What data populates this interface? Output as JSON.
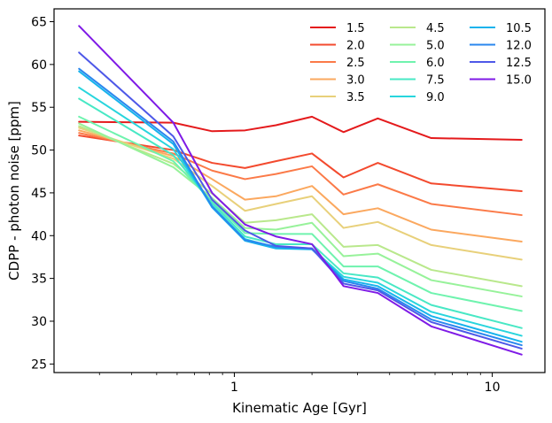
{
  "chart_data": {
    "type": "line",
    "title": "",
    "xlabel": "Kinematic Age [Gyr]",
    "ylabel": "CDPP - photon noise [ppm]",
    "xscale": "log",
    "xlim": [
      0.2,
      16.0
    ],
    "ylim": [
      24,
      66.5
    ],
    "yticks": [
      25,
      30,
      35,
      40,
      45,
      50,
      55,
      60,
      65
    ],
    "xticks": [
      1,
      10
    ],
    "xtick_labels": [
      "1",
      "10"
    ],
    "x": [
      0.25,
      0.58,
      0.82,
      1.1,
      1.45,
      2.0,
      2.65,
      3.6,
      5.8,
      13.0
    ],
    "legend_position": "top-right",
    "legend_columns": 3,
    "series": [
      {
        "name": "1.5",
        "color": "#e41a1c",
        "values": [
          53.3,
          53.2,
          52.2,
          52.3,
          52.9,
          53.9,
          52.1,
          53.7,
          51.4,
          51.2
        ]
      },
      {
        "name": "2.0",
        "color": "#f34a2e",
        "values": [
          51.7,
          50.0,
          48.5,
          47.9,
          48.7,
          49.6,
          46.8,
          48.5,
          46.1,
          45.2
        ]
      },
      {
        "name": "2.5",
        "color": "#fb7a48",
        "values": [
          52.0,
          49.6,
          47.6,
          46.6,
          47.2,
          48.1,
          44.8,
          46.0,
          43.7,
          42.4
        ]
      },
      {
        "name": "3.0",
        "color": "#fba85f",
        "values": [
          52.3,
          49.3,
          46.6,
          44.2,
          44.6,
          45.8,
          42.5,
          43.2,
          40.7,
          39.3
        ]
      },
      {
        "name": "3.5",
        "color": "#e8d07a",
        "values": [
          52.6,
          49.0,
          45.8,
          42.9,
          43.7,
          44.6,
          40.9,
          41.6,
          38.9,
          37.2
        ]
      },
      {
        "name": "4.5",
        "color": "#b9e88c",
        "values": [
          52.8,
          48.4,
          44.9,
          41.5,
          41.8,
          42.5,
          38.7,
          38.9,
          36.0,
          34.1
        ]
      },
      {
        "name": "5.0",
        "color": "#97f29a",
        "values": [
          53.1,
          48.0,
          44.4,
          40.9,
          40.7,
          41.5,
          37.6,
          37.9,
          34.8,
          32.9
        ]
      },
      {
        "name": "6.0",
        "color": "#6ff3ae",
        "values": [
          53.9,
          48.7,
          44.0,
          40.3,
          40.2,
          40.2,
          36.4,
          36.4,
          33.3,
          31.2
        ]
      },
      {
        "name": "7.5",
        "color": "#48e8c5",
        "values": [
          56.0,
          49.4,
          43.8,
          39.9,
          39.0,
          39.0,
          35.6,
          35.1,
          31.9,
          29.2
        ]
      },
      {
        "name": "9.0",
        "color": "#28d5dd",
        "values": [
          57.3,
          50.1,
          43.5,
          39.6,
          38.6,
          38.5,
          35.2,
          34.5,
          31.1,
          28.3
        ]
      },
      {
        "name": "10.5",
        "color": "#17b3ec",
        "values": [
          59.2,
          50.7,
          43.3,
          39.4,
          38.5,
          38.4,
          34.9,
          34.1,
          30.6,
          27.6
        ]
      },
      {
        "name": "12.0",
        "color": "#2a87ee",
        "values": [
          59.5,
          51.0,
          43.4,
          39.5,
          38.7,
          38.5,
          34.7,
          33.8,
          30.2,
          27.2
        ]
      },
      {
        "name": "12.5",
        "color": "#4e58e8",
        "values": [
          61.4,
          51.6,
          44.2,
          40.6,
          38.8,
          38.5,
          34.4,
          33.6,
          29.9,
          26.8
        ]
      },
      {
        "name": "15.0",
        "color": "#7f1ae6",
        "values": [
          64.5,
          53.2,
          45.0,
          41.3,
          39.9,
          39.0,
          34.1,
          33.3,
          29.4,
          26.1
        ]
      }
    ]
  }
}
